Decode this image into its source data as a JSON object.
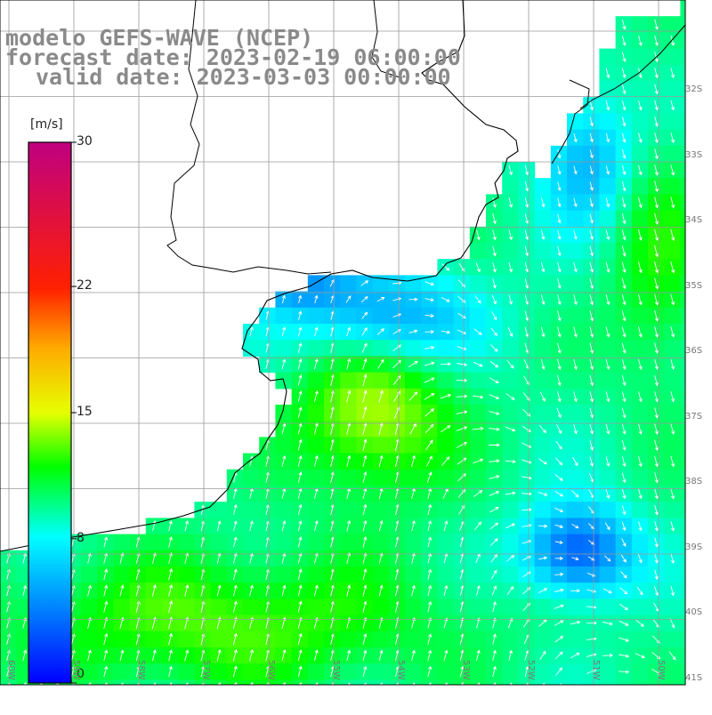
{
  "title": {
    "line1": "modelo GEFS-WAVE (NCEP)",
    "line2": "forecast date: 2023-02-19 06:00:00",
    "line3": "valid date: 2023-03-03 00:00:00"
  },
  "colorbar": {
    "unit": "[m/s]",
    "ticks": [
      {
        "value": 30,
        "label": "30"
      },
      {
        "value": 22,
        "label": "22"
      },
      {
        "value": 15,
        "label": "15"
      },
      {
        "value": 8,
        "label": "8"
      },
      {
        "value": 0,
        "label": "0"
      }
    ],
    "range": [
      0,
      30
    ],
    "colors": [
      "#0000ff",
      "#00ffff",
      "#00ff00",
      "#ffff00",
      "#ff8000",
      "#ff0000",
      "#c00080"
    ]
  },
  "map": {
    "lon_labels": [
      "60W",
      "59W",
      "58W",
      "57W",
      "56W",
      "55W",
      "54W",
      "53W",
      "52W",
      "51W",
      "50W"
    ],
    "lat_labels": [
      "32S",
      "33S",
      "34S",
      "35S",
      "36S",
      "37S",
      "38S",
      "39S",
      "40S",
      "41S"
    ],
    "variable": "wind speed and direction",
    "land_color": "#ffffff",
    "coast_color": "#000000",
    "grid_color": "#9a9a9a"
  }
}
